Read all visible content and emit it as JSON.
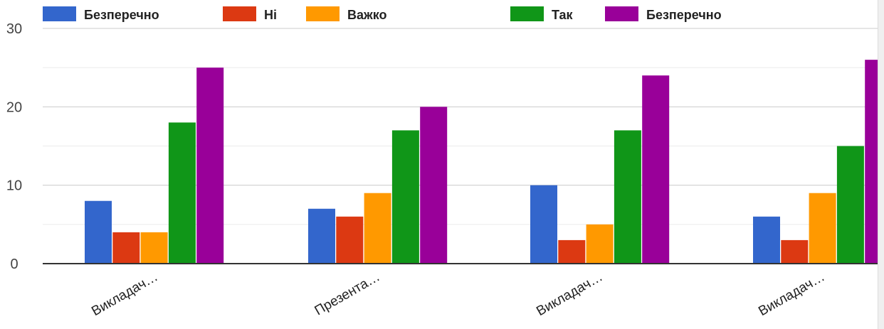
{
  "chart_data": {
    "type": "bar",
    "categories": [
      "Викладач…",
      "Презента…",
      "Викладач…",
      "Викладач…"
    ],
    "series": [
      {
        "name": "Безперечно",
        "color": "#3366cc",
        "values": [
          8,
          7,
          10,
          6
        ]
      },
      {
        "name": "Ні",
        "color": "#dc3912",
        "values": [
          4,
          6,
          3,
          3
        ]
      },
      {
        "name": "Важко",
        "color": "#ff9900",
        "values": [
          4,
          9,
          5,
          9
        ]
      },
      {
        "name": "Так",
        "color": "#109618",
        "values": [
          18,
          17,
          17,
          15
        ]
      },
      {
        "name": "Безперечно",
        "color": "#990099",
        "values": [
          25,
          20,
          24,
          26
        ]
      }
    ],
    "ylim": [
      0,
      30
    ],
    "yticks": [
      0,
      10,
      20,
      30
    ],
    "grid": true,
    "legend_position": "top"
  }
}
